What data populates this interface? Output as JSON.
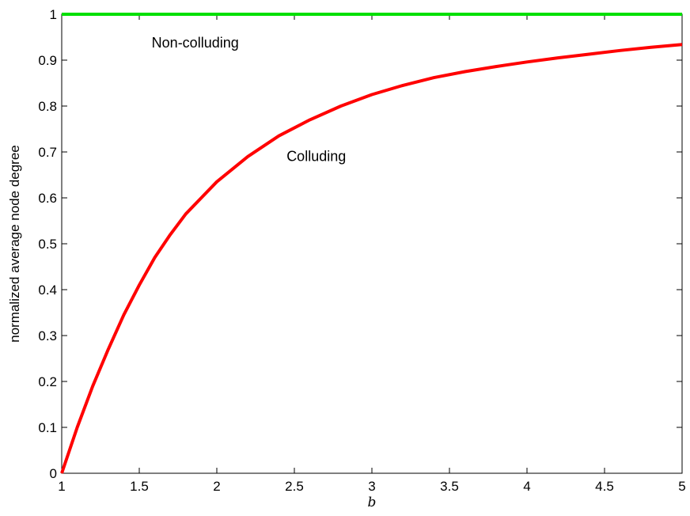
{
  "chart_data": {
    "type": "line",
    "title": "",
    "xlabel": "b",
    "ylabel": "normalized average node degree",
    "xlim": [
      1,
      5
    ],
    "ylim": [
      0,
      1
    ],
    "grid": false,
    "x_ticks": [
      1,
      1.5,
      2,
      2.5,
      3,
      3.5,
      4,
      4.5,
      5
    ],
    "x_tick_labels": [
      "1",
      "1.5",
      "2",
      "2.5",
      "3",
      "3.5",
      "4",
      "4.5",
      "5"
    ],
    "y_ticks": [
      0,
      0.1,
      0.2,
      0.3,
      0.4,
      0.5,
      0.6,
      0.7,
      0.8,
      0.9,
      1
    ],
    "y_tick_labels": [
      "0",
      "0.1",
      "0.2",
      "0.3",
      "0.4",
      "0.5",
      "0.6",
      "0.7",
      "0.8",
      "0.9",
      "1"
    ],
    "series": [
      {
        "color": "#00e000",
        "x": [
          1,
          1.5,
          2,
          2.5,
          3,
          3.5,
          4,
          4.5,
          5
        ],
        "y": [
          1,
          1,
          1,
          1,
          1,
          1,
          1,
          1,
          1
        ]
      },
      {
        "color": "#ff0000",
        "x": [
          1,
          1.1,
          1.2,
          1.3,
          1.4,
          1.5,
          1.6,
          1.7,
          1.8,
          1.9,
          2,
          2.2,
          2.4,
          2.6,
          2.8,
          3,
          3.2,
          3.4,
          3.6,
          3.8,
          4,
          4.2,
          4.4,
          4.6,
          4.8,
          5
        ],
        "y": [
          0,
          0.1,
          0.19,
          0.27,
          0.345,
          0.41,
          0.47,
          0.52,
          0.565,
          0.6,
          0.635,
          0.69,
          0.735,
          0.77,
          0.8,
          0.825,
          0.845,
          0.862,
          0.875,
          0.886,
          0.896,
          0.905,
          0.913,
          0.921,
          0.928,
          0.934
        ]
      }
    ],
    "annotations": [
      {
        "text": "Non-colluding",
        "x": 1.58,
        "y": 0.928
      },
      {
        "text": "Colluding",
        "x": 2.45,
        "y": 0.68
      }
    ]
  }
}
